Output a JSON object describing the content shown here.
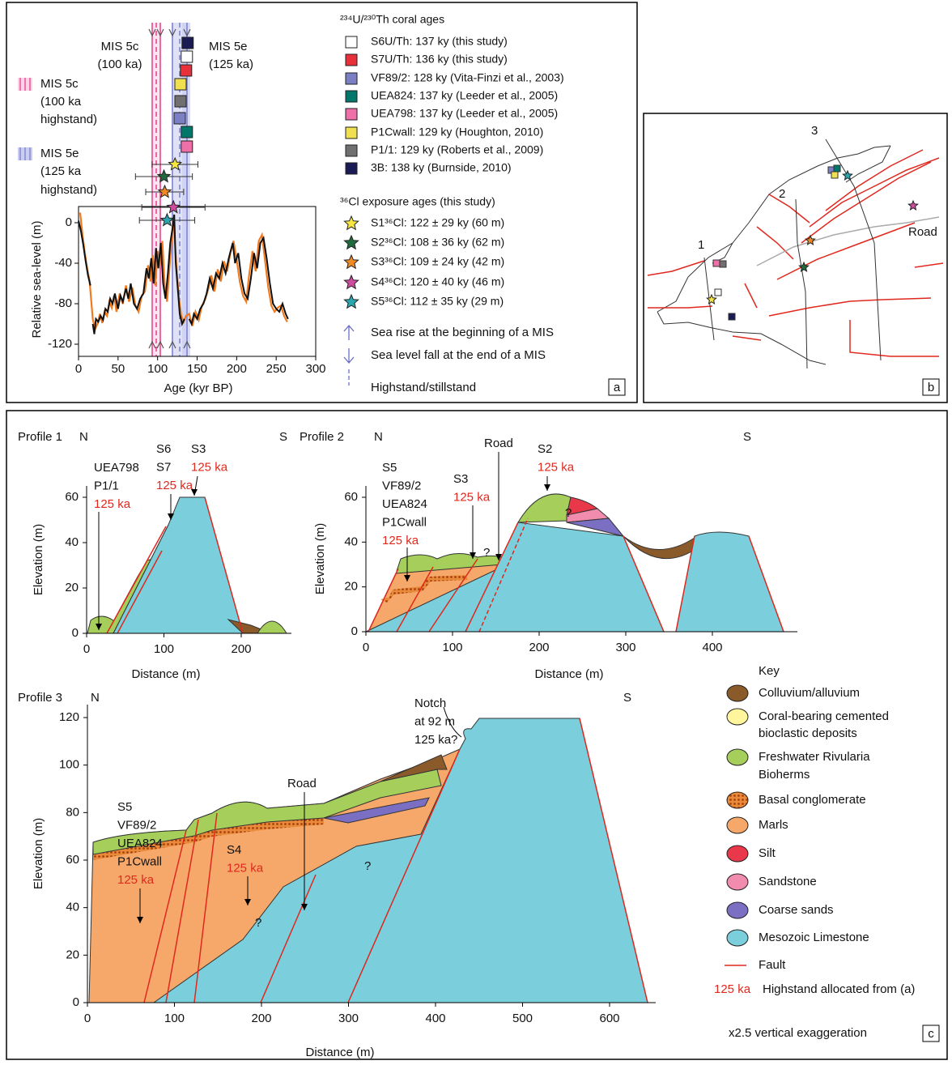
{
  "panel_a": {
    "label": "a",
    "mis5c": [
      "MIS 5c",
      "(100 ka)"
    ],
    "mis5e": [
      "MIS 5e",
      "(125 ka)"
    ],
    "band_5c": [
      "MIS 5c",
      "(100 ka",
      "highstand)"
    ],
    "band_5e": [
      "MIS 5e",
      "(125 ka",
      "highstand)"
    ],
    "xlabel": "Age (kyr BP)",
    "ylabel": "Relative sea-level (m)",
    "xlim": [
      0,
      300
    ],
    "ylim": [
      -132,
      16
    ],
    "xticks": [
      0,
      50,
      100,
      150,
      200,
      250,
      300
    ],
    "yticks": [
      0,
      -40,
      -80,
      -120
    ],
    "sea_level": {
      "color": "#111111",
      "x": [
        0,
        3,
        6,
        9,
        12,
        15,
        17,
        18,
        20,
        22,
        25,
        28,
        31,
        34,
        37,
        40,
        43,
        46,
        50,
        53,
        56,
        60,
        63,
        66,
        70,
        74,
        78,
        82,
        86,
        89,
        92,
        95,
        98,
        101,
        104,
        107,
        110,
        113,
        116,
        119,
        121,
        123,
        126,
        128,
        131,
        134,
        137,
        140,
        143,
        146,
        150,
        154,
        158,
        162,
        166,
        170,
        174,
        178,
        182,
        186,
        190,
        195,
        198,
        202,
        206,
        210,
        214,
        218,
        222,
        226,
        230,
        234,
        238,
        242,
        246,
        250,
        254,
        258,
        262,
        265
      ],
      "values": [
        2,
        -8,
        -22,
        -38,
        -52,
        -62,
        null,
        -100,
        -110,
        -95,
        -98,
        -92,
        -96,
        -85,
        -88,
        -75,
        -80,
        -70,
        -85,
        -72,
        -78,
        -65,
        -75,
        -60,
        -80,
        -85,
        -75,
        -70,
        -45,
        -55,
        -35,
        -60,
        -25,
        -45,
        -20,
        -60,
        -75,
        -50,
        -20,
        -5,
        8,
        -40,
        -70,
        -90,
        -100,
        -95,
        null,
        -95,
        -100,
        -90,
        -95,
        -85,
        -80,
        -70,
        -55,
        -65,
        -50,
        -55,
        -40,
        -50,
        -35,
        -20,
        -40,
        -30,
        -55,
        -70,
        -75,
        -55,
        -30,
        -45,
        -20,
        -15,
        -35,
        -60,
        -80,
        -85,
        -88,
        -80,
        -90,
        -95
      ]
    },
    "sea_level_alt": {
      "color": "#f07a20",
      "x": [
        2,
        5,
        8,
        11,
        14,
        18,
        21,
        24,
        27,
        30,
        33,
        36,
        39,
        42,
        45,
        48,
        52,
        56,
        60,
        64,
        68,
        72,
        76,
        80,
        84,
        88,
        91,
        94,
        97,
        100,
        103,
        106,
        109,
        112,
        115,
        118,
        120,
        124,
        127,
        130,
        133,
        136,
        140,
        144,
        148,
        152,
        156,
        160,
        164,
        168,
        172,
        176,
        180,
        184,
        188,
        192,
        196,
        200,
        204,
        208,
        212,
        216,
        220,
        224,
        228,
        232,
        236,
        240,
        244,
        248,
        252,
        256,
        260,
        264
      ],
      "values": [
        10,
        -12,
        -30,
        -45,
        -58,
        -95,
        -105,
        -100,
        -90,
        -99,
        -88,
        -92,
        -78,
        -84,
        -72,
        -88,
        -70,
        -80,
        -62,
        -78,
        -64,
        -82,
        -88,
        -72,
        -68,
        -42,
        -58,
        -32,
        -62,
        -28,
        -42,
        -18,
        -62,
        -78,
        -45,
        -15,
        5,
        -45,
        -75,
        -92,
        -98,
        -92,
        -90,
        -102,
        -88,
        -96,
        -82,
        -76,
        -66,
        -52,
        -68,
        -46,
        -58,
        -38,
        -48,
        -30,
        -18,
        -36,
        -58,
        -72,
        -78,
        -50,
        -28,
        -48,
        -18,
        -12,
        -38,
        -64,
        -82,
        -88,
        -84,
        -82,
        -92,
        -98
      ]
    },
    "coral_heading": "²³⁴U/²³⁰Th coral ages",
    "corals": [
      {
        "label": "S6U/Th: 137 ky (this study)",
        "age": 137,
        "color": "#ffffff"
      },
      {
        "label": "S7U/Th: 136 ky (this study)",
        "age": 136,
        "color": "#e8303a"
      },
      {
        "label": "VF89/2: 128 ky (Vita-Finzi et al., 2003)",
        "age": 128,
        "color": "#7b7fc4"
      },
      {
        "label": "UEA824: 137 ky (Leeder et al., 2005)",
        "age": 137,
        "color": "#00776a"
      },
      {
        "label": "UEA798: 137 ky (Leeder et al., 2005)",
        "age": 137,
        "color": "#ef6fa8"
      },
      {
        "label": "P1Cwall: 129 ky (Houghton, 2010)",
        "age": 129,
        "color": "#f0e050"
      },
      {
        "label": "P1/1: 129 ky (Roberts et al., 2009)",
        "age": 129,
        "color": "#707070"
      },
      {
        "label": "3B: 138 ky (Burnside, 2010)",
        "age": 138,
        "color": "#1a1a55"
      }
    ],
    "cl_heading": "³⁶Cl exposure ages (this study)",
    "exposure": [
      {
        "label": "S1³⁶Cl: 122 ± 29 ky (60 m)",
        "age": 122,
        "error": 29,
        "color": "#f5e642"
      },
      {
        "label": "S2³⁶Cl:  108 ± 36 ky (62 m)",
        "age": 108,
        "error": 36,
        "color": "#1e6b3c"
      },
      {
        "label": "S3³⁶Cl: 109 ± 24 ky (42 m)",
        "age": 109,
        "error": 24,
        "color": "#f08a24"
      },
      {
        "label": "S4³⁶Cl: 120 ± 40 ky (46 m)",
        "age": 120,
        "error": 40,
        "color": "#d04aa0"
      },
      {
        "label": "S5³⁶Cl: 112 ± 35 ky (29 m)",
        "age": 112,
        "error": 35,
        "color": "#2aa6b0"
      }
    ],
    "symbols": [
      "Sea rise at the beginning of a MIS",
      "Sea level fall at the end of a MIS",
      "Highstand/stillstand"
    ]
  },
  "panel_b": {
    "label": "b",
    "profiles": [
      "1",
      "2",
      "3"
    ],
    "road": "Road"
  },
  "panel_c": {
    "label": "c",
    "profiles": [
      {
        "title": "Profile 1",
        "north": "N",
        "south": "S",
        "xlabel": "Distance (m)",
        "ylabel": "Elevation (m)",
        "xticks": [
          0,
          100,
          200
        ],
        "yticks": [
          0,
          20,
          40,
          60
        ],
        "annotations": [
          {
            "lines": [
              "UEA798",
              "P1/1"
            ],
            "age": "125 ka"
          },
          {
            "lines": [
              "S6",
              "S7"
            ],
            "age": "125 ka"
          },
          {
            "lines": [
              "S3"
            ],
            "age": "125 ka"
          }
        ]
      },
      {
        "title": "Profile 2",
        "north": "N",
        "south": "S",
        "xlabel": "Distance (m)",
        "ylabel": "Elevation (m)",
        "xticks": [
          0,
          100,
          200,
          300,
          400
        ],
        "yticks": [
          0,
          20,
          40,
          60
        ],
        "annotations": [
          {
            "lines": [
              "S5",
              "VF89/2",
              "UEA824",
              "P1Cwall"
            ],
            "age": "125 ka"
          },
          {
            "lines": [
              "S3"
            ],
            "age": "125 ka"
          },
          {
            "lines": [
              "Road"
            ]
          },
          {
            "lines": [
              "S2"
            ],
            "age": "125 ka"
          }
        ]
      },
      {
        "title": "Profile 3",
        "north": "N",
        "south": "S",
        "xlabel": "Distance (m)",
        "ylabel": "Elevation (m)",
        "xticks": [
          0,
          100,
          200,
          300,
          400,
          500,
          600
        ],
        "yticks": [
          0,
          20,
          40,
          60,
          80,
          100,
          120
        ],
        "annotations": [
          {
            "lines": [
              "S5",
              "VF89/2",
              "UEA824",
              "P1Cwall"
            ],
            "age": "125 ka"
          },
          {
            "lines": [
              "S4"
            ],
            "age": "125 ka"
          },
          {
            "lines": [
              "Road"
            ]
          },
          {
            "lines": [
              "Notch",
              "at 92 m",
              "125 ka?"
            ]
          }
        ]
      }
    ],
    "question": "?",
    "key": {
      "title": "Key",
      "items": [
        {
          "label": [
            "Colluvium/alluvium"
          ],
          "color": "#8b5a2b"
        },
        {
          "label": [
            "Coral-bearing cemented",
            "bioclastic deposits"
          ],
          "color": "#fff59d"
        },
        {
          "label": [
            "Freshwater Rivularia",
            "Bioherms"
          ],
          "color": "#a5cf5a"
        },
        {
          "label": [
            "Basal conglomerate"
          ],
          "color": "#d2691e"
        },
        {
          "label": [
            "Marls"
          ],
          "color": "#f5a86a"
        },
        {
          "label": [
            "Silt"
          ],
          "color": "#e8384a"
        },
        {
          "label": [
            "Sandstone"
          ],
          "color": "#f28cae"
        },
        {
          "label": [
            "Coarse sands"
          ],
          "color": "#7b6fc4"
        },
        {
          "label": [
            "Mesozoic Limestone"
          ],
          "color": "#7bcfdc"
        }
      ],
      "fault": "Fault",
      "highstand_age": "125 ka",
      "highstand_text": "Highstand allocated from (a)"
    },
    "exaggeration": "x2.5 vertical exaggeration"
  }
}
